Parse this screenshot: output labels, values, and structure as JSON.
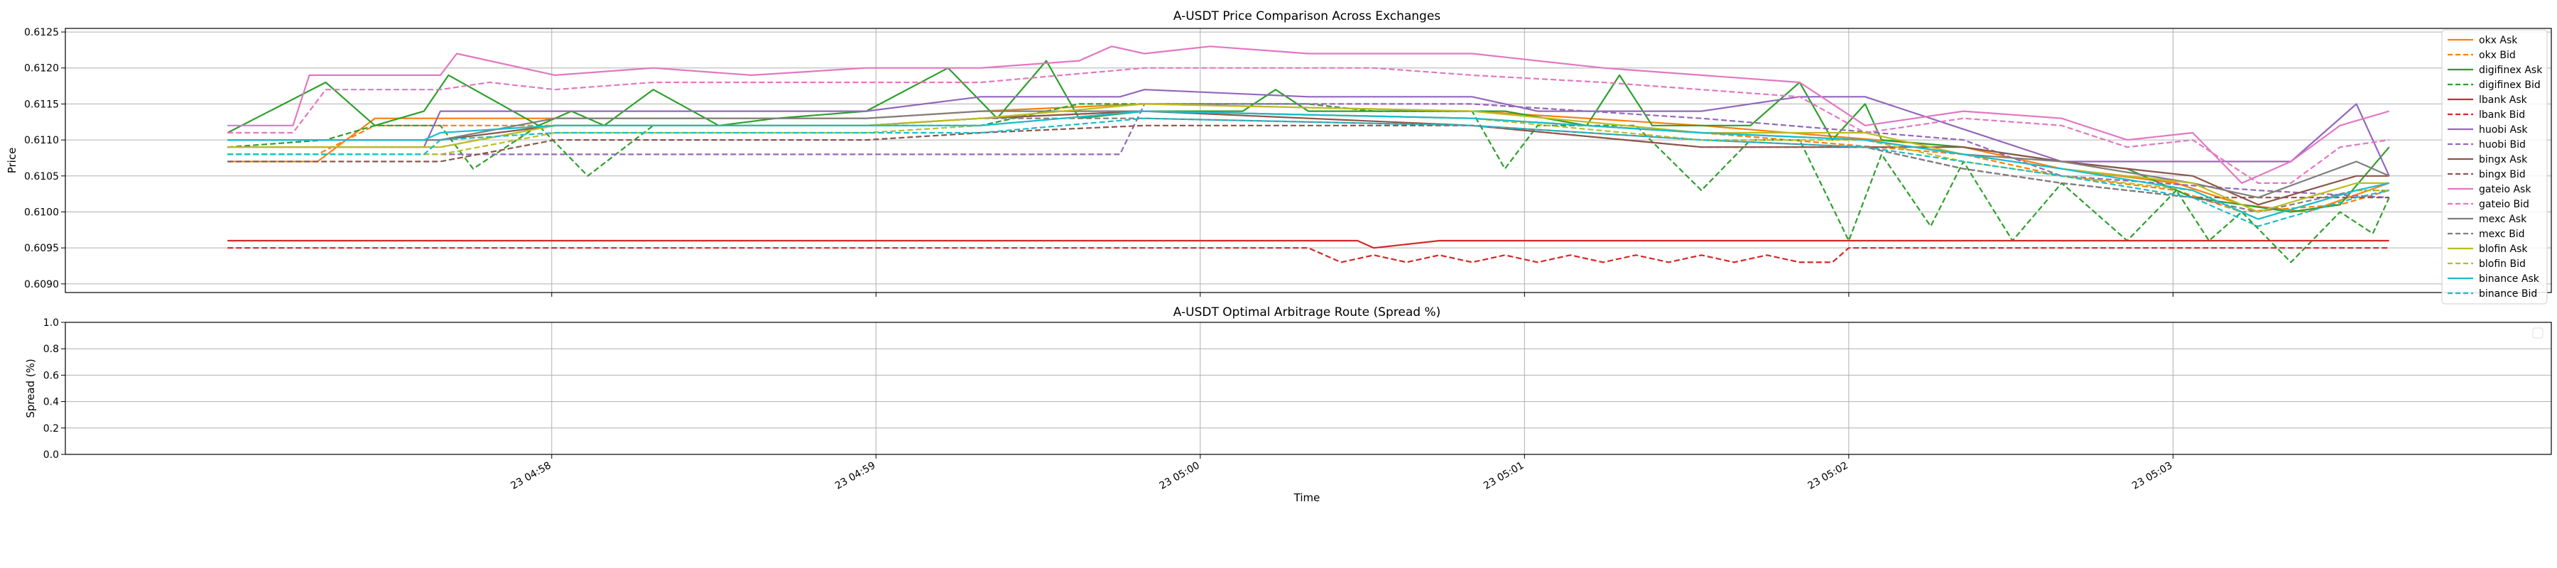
{
  "chart_data": [
    {
      "type": "line",
      "title": "A-USDT Price Comparison Across Exchanges",
      "xlabel": "",
      "ylabel": "Price",
      "ylim": [
        0.60888,
        0.61255
      ],
      "yticks": [
        "0.6090",
        "0.6095",
        "0.6100",
        "0.6105",
        "0.6110",
        "0.6115",
        "0.6120",
        "0.6125"
      ],
      "grid": true,
      "legend_placement": "right",
      "series": [
        {
          "name": "okx Ask",
          "color": "#ff7f0e",
          "dash": "solid",
          "x": [
            0,
            55,
            90,
            200,
            390,
            460,
            560,
            760,
            900,
            1060,
            1120,
            1190,
            1230,
            1270,
            1320
          ],
          "y": [
            0.6107,
            0.6107,
            0.6113,
            0.6113,
            0.6113,
            0.6114,
            0.6115,
            0.6114,
            0.6112,
            0.6109,
            0.6106,
            0.6104,
            0.6101,
            0.61,
            0.6104
          ]
        },
        {
          "name": "okx Bid",
          "color": "#ff7f0e",
          "dash": "dashed",
          "x": [
            0,
            55,
            90,
            200,
            390,
            460,
            560,
            760,
            900,
            1060,
            1120,
            1190,
            1230,
            1290,
            1320
          ],
          "y": [
            0.6108,
            0.6108,
            0.6112,
            0.6112,
            0.6112,
            0.6113,
            0.6114,
            0.6113,
            0.6111,
            0.6108,
            0.6105,
            0.6103,
            0.61,
            0.6101,
            0.6103
          ]
        },
        {
          "name": "digifinex Ask",
          "color": "#2ca02c",
          "dash": "solid",
          "x": [
            0,
            60,
            90,
            120,
            135,
            190,
            210,
            230,
            260,
            300,
            335,
            390,
            440,
            470,
            500,
            520,
            560,
            620,
            640,
            660,
            700,
            780,
            830,
            850,
            870,
            930,
            960,
            980,
            1000,
            1010,
            1060,
            1120,
            1160,
            1200,
            1230,
            1260,
            1290,
            1320
          ],
          "y": [
            0.6111,
            0.6118,
            0.6112,
            0.6114,
            0.6119,
            0.6112,
            0.6114,
            0.6112,
            0.6117,
            0.6112,
            0.6113,
            0.6114,
            0.612,
            0.6113,
            0.6121,
            0.6113,
            0.6114,
            0.6114,
            0.6117,
            0.6114,
            0.6114,
            0.6114,
            0.6112,
            0.6119,
            0.6112,
            0.6112,
            0.6118,
            0.611,
            0.6115,
            0.611,
            0.6109,
            0.6107,
            0.6106,
            0.6102,
            0.6101,
            0.61,
            0.6101,
            0.6109
          ]
        },
        {
          "name": "digifinex Bid",
          "color": "#2ca02c",
          "dash": "dashed",
          "x": [
            0,
            60,
            90,
            130,
            150,
            190,
            220,
            260,
            300,
            335,
            390,
            460,
            520,
            560,
            620,
            660,
            700,
            760,
            780,
            800,
            860,
            900,
            930,
            960,
            990,
            1010,
            1040,
            1060,
            1090,
            1120,
            1160,
            1190,
            1210,
            1230,
            1260,
            1290,
            1310,
            1320
          ],
          "y": [
            0.6109,
            0.611,
            0.6112,
            0.6112,
            0.6106,
            0.6112,
            0.6105,
            0.6112,
            0.6112,
            0.6112,
            0.6112,
            0.6112,
            0.6115,
            0.6115,
            0.6115,
            0.6115,
            0.6114,
            0.6114,
            0.6106,
            0.6112,
            0.6112,
            0.6103,
            0.611,
            0.611,
            0.6096,
            0.6108,
            0.6098,
            0.6107,
            0.6096,
            0.6104,
            0.6096,
            0.6103,
            0.6096,
            0.61,
            0.6093,
            0.61,
            0.6097,
            0.6102
          ]
        },
        {
          "name": "lbank Ask",
          "color": "#d62728",
          "dash": "solid",
          "x": [
            0,
            690,
            700,
            740,
            760,
            900,
            1000,
            1320
          ],
          "y": [
            0.6096,
            0.6096,
            0.6095,
            0.6096,
            0.6096,
            0.6096,
            0.6096,
            0.6096
          ]
        },
        {
          "name": "lbank Bid",
          "color": "#d62728",
          "dash": "dashed",
          "x": [
            0,
            660,
            680,
            700,
            720,
            740,
            760,
            780,
            800,
            820,
            840,
            860,
            880,
            900,
            920,
            940,
            960,
            980,
            990,
            1000,
            1320
          ],
          "y": [
            0.6095,
            0.6095,
            0.6093,
            0.6094,
            0.6093,
            0.6094,
            0.6093,
            0.6094,
            0.6093,
            0.6094,
            0.6093,
            0.6094,
            0.6093,
            0.6094,
            0.6093,
            0.6094,
            0.6093,
            0.6093,
            0.6095,
            0.6095,
            0.6095
          ]
        },
        {
          "name": "huobi Ask",
          "color": "#9467bd",
          "dash": "solid",
          "x": [
            0,
            120,
            130,
            200,
            390,
            460,
            530,
            545,
            560,
            660,
            760,
            800,
            900,
            960,
            1000,
            1120,
            1160,
            1260,
            1300,
            1320
          ],
          "y": [
            0.6109,
            0.6109,
            0.6114,
            0.6114,
            0.6114,
            0.6116,
            0.6116,
            0.6116,
            0.6117,
            0.6116,
            0.6116,
            0.6114,
            0.6114,
            0.6116,
            0.6116,
            0.6107,
            0.6107,
            0.6107,
            0.6115,
            0.6105
          ]
        },
        {
          "name": "huobi Bid",
          "color": "#9467bd",
          "dash": "dashed",
          "x": [
            0,
            380,
            545,
            560,
            760,
            900,
            1060,
            1120,
            1240,
            1320
          ],
          "y": [
            0.6108,
            0.6108,
            0.6108,
            0.6115,
            0.6115,
            0.6113,
            0.611,
            0.6105,
            0.6103,
            0.6102
          ]
        },
        {
          "name": "bingx Ask",
          "color": "#8c564b",
          "dash": "solid",
          "x": [
            0,
            130,
            200,
            390,
            460,
            560,
            660,
            760,
            900,
            1000,
            1060,
            1120,
            1200,
            1240,
            1300,
            1320
          ],
          "y": [
            0.611,
            0.611,
            0.6112,
            0.6112,
            0.6113,
            0.6114,
            0.6113,
            0.6112,
            0.6109,
            0.6109,
            0.6109,
            0.6107,
            0.6105,
            0.6101,
            0.6105,
            0.6105
          ]
        },
        {
          "name": "bingx Bid",
          "color": "#8c564b",
          "dash": "dashed",
          "x": [
            0,
            130,
            200,
            390,
            460,
            560,
            660,
            760,
            900,
            1000,
            1060,
            1120,
            1200,
            1320
          ],
          "y": [
            0.6107,
            0.6107,
            0.611,
            0.611,
            0.6111,
            0.6112,
            0.6112,
            0.6112,
            0.6109,
            0.6109,
            0.6106,
            0.6104,
            0.6102,
            0.6102
          ]
        },
        {
          "name": "gateio Ask",
          "color": "#e377c2",
          "dash": "solid",
          "x": [
            0,
            40,
            50,
            130,
            140,
            200,
            260,
            320,
            390,
            460,
            520,
            540,
            560,
            600,
            660,
            680,
            700,
            760,
            840,
            900,
            960,
            1000,
            1060,
            1120,
            1160,
            1200,
            1230,
            1260,
            1290,
            1320
          ],
          "y": [
            0.6112,
            0.6112,
            0.6119,
            0.6119,
            0.6122,
            0.6119,
            0.612,
            0.6119,
            0.612,
            0.612,
            0.6121,
            0.6123,
            0.6122,
            0.6123,
            0.6122,
            0.6122,
            0.6122,
            0.6122,
            0.612,
            0.6119,
            0.6118,
            0.6112,
            0.6114,
            0.6113,
            0.611,
            0.6111,
            0.6104,
            0.6107,
            0.6112,
            0.6114
          ]
        },
        {
          "name": "gateio Bid",
          "color": "#e377c2",
          "dash": "dashed",
          "x": [
            0,
            40,
            60,
            130,
            160,
            200,
            260,
            390,
            460,
            560,
            620,
            700,
            760,
            840,
            900,
            960,
            1000,
            1060,
            1120,
            1160,
            1200,
            1240,
            1260,
            1290,
            1320
          ],
          "y": [
            0.6111,
            0.6111,
            0.6117,
            0.6117,
            0.6118,
            0.6117,
            0.6118,
            0.6118,
            0.6118,
            0.612,
            0.612,
            0.612,
            0.6119,
            0.6118,
            0.6117,
            0.6116,
            0.6111,
            0.6113,
            0.6112,
            0.6109,
            0.611,
            0.6104,
            0.6104,
            0.6109,
            0.611
          ]
        },
        {
          "name": "mexc Ask",
          "color": "#7f7f7f",
          "dash": "solid",
          "x": [
            0,
            130,
            200,
            390,
            460,
            560,
            760,
            900,
            1000,
            1060,
            1120,
            1200,
            1240,
            1300,
            1320
          ],
          "y": [
            0.611,
            0.611,
            0.6113,
            0.6113,
            0.6114,
            0.6114,
            0.6113,
            0.6111,
            0.611,
            0.6108,
            0.6107,
            0.6104,
            0.6102,
            0.6107,
            0.6105
          ]
        },
        {
          "name": "mexc Bid",
          "color": "#7f7f7f",
          "dash": "dashed",
          "x": [
            0,
            130,
            200,
            390,
            460,
            560,
            760,
            900,
            1000,
            1060,
            1120,
            1200,
            1240,
            1300,
            1320
          ],
          "y": [
            0.6109,
            0.6109,
            0.6112,
            0.6112,
            0.6113,
            0.6113,
            0.6112,
            0.611,
            0.6109,
            0.6106,
            0.6104,
            0.6102,
            0.61,
            0.6103,
            0.6103
          ]
        },
        {
          "name": "blofin Ask",
          "color": "#bcbd22",
          "dash": "solid",
          "x": [
            0,
            130,
            200,
            390,
            460,
            560,
            760,
            900,
            1000,
            1060,
            1120,
            1200,
            1240,
            1300,
            1320
          ],
          "y": [
            0.6109,
            0.6109,
            0.6112,
            0.6112,
            0.6113,
            0.6115,
            0.6114,
            0.6111,
            0.6111,
            0.6108,
            0.6106,
            0.6104,
            0.61,
            0.6104,
            0.6104
          ]
        },
        {
          "name": "blofin Bid",
          "color": "#bcbd22",
          "dash": "dashed",
          "x": [
            0,
            130,
            200,
            390,
            460,
            560,
            760,
            900,
            1000,
            1060,
            1120,
            1200,
            1240,
            1300,
            1320
          ],
          "y": [
            0.6108,
            0.6108,
            0.6111,
            0.6111,
            0.6112,
            0.6114,
            0.6113,
            0.611,
            0.611,
            0.6107,
            0.6105,
            0.6103,
            0.6099,
            0.6103,
            0.6103
          ]
        },
        {
          "name": "binance Ask",
          "color": "#17becf",
          "dash": "solid",
          "x": [
            0,
            120,
            130,
            200,
            390,
            460,
            560,
            760,
            900,
            1000,
            1060,
            1120,
            1200,
            1240,
            1300,
            1320
          ],
          "y": [
            0.611,
            0.611,
            0.6111,
            0.6112,
            0.6112,
            0.6112,
            0.6114,
            0.6113,
            0.6111,
            0.611,
            0.6108,
            0.6106,
            0.6103,
            0.6099,
            0.6103,
            0.6104
          ]
        },
        {
          "name": "binance Bid",
          "color": "#17becf",
          "dash": "dashed",
          "x": [
            0,
            120,
            130,
            200,
            390,
            460,
            560,
            760,
            900,
            1000,
            1060,
            1120,
            1200,
            1240,
            1300,
            1320
          ],
          "y": [
            0.6108,
            0.6108,
            0.611,
            0.6111,
            0.6111,
            0.6111,
            0.6113,
            0.6112,
            0.611,
            0.6109,
            0.6107,
            0.6105,
            0.6102,
            0.6098,
            0.6102,
            0.6103
          ]
        }
      ]
    },
    {
      "type": "line",
      "title": "A-USDT Optimal Arbitrage Route (Spread %)",
      "xlabel": "Time",
      "ylabel": "Spread (%)",
      "ylim": [
        0.0,
        1.0
      ],
      "yticks": [
        "0.0",
        "0.2",
        "0.4",
        "0.6",
        "0.8",
        "1.0"
      ],
      "grid": true,
      "series": []
    }
  ],
  "shared_x": {
    "xlim_seconds_from_first_tick": [
      -90,
      370
    ],
    "tick_seconds": [
      0,
      60,
      120,
      180,
      240,
      300
    ],
    "tick_labels": [
      "23 04:58",
      "23 04:59",
      "23 05:00",
      "23 05:01",
      "23 05:02",
      "23 05:03"
    ],
    "data_start_seconds": -60,
    "data_end_seconds": 340
  }
}
